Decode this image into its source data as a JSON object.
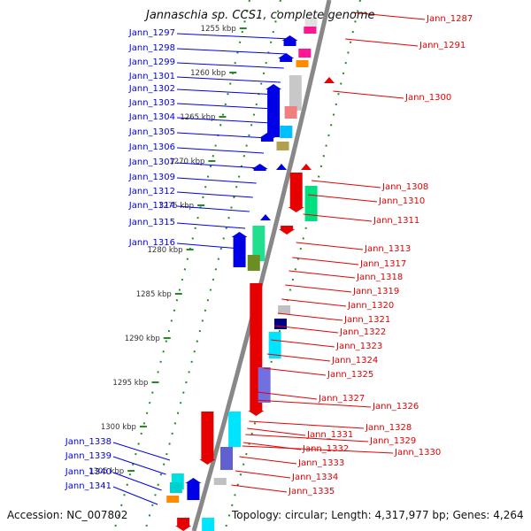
{
  "title": "Jannaschia sp. CCS1, complete genome",
  "footer": {
    "accession": "Accession: NC_007802",
    "topology": "Topology: circular; Length: 4,317,977 bp; Genes: 4,264"
  },
  "scale_labels": [
    "1255 kbp",
    "1260 kbp",
    "1265 kbp",
    "1270 kbp",
    "1275 kbp",
    "1280 kbp",
    "1285 kbp",
    "1290 kbp",
    "1295 kbp",
    "1300 kbp",
    "1305 kbp"
  ],
  "left_genes": [
    "Jann_1297",
    "Jann_1298",
    "Jann_1299",
    "Jann_1301",
    "Jann_1302",
    "Jann_1303",
    "Jann_1304",
    "Jann_1305",
    "Jann_1306",
    "Jann_1307",
    "Jann_1309",
    "Jann_1312",
    "Jann_1314",
    "Jann_1315",
    "Jann_1316",
    "Jann_1338",
    "Jann_1339",
    "Jann_1340",
    "Jann_1341"
  ],
  "right_genes": [
    "Jann_1287",
    "Jann_1291",
    "Jann_1300",
    "Jann_1308",
    "Jann_1310",
    "Jann_1311",
    "Jann_1313",
    "Jann_1317",
    "Jann_1318",
    "Jann_1319",
    "Jann_1320",
    "Jann_1321",
    "Jann_1322",
    "Jann_1323",
    "Jann_1324",
    "Jann_1325",
    "Jann_1327",
    "Jann_1326",
    "Jann_1328",
    "Jann_1329",
    "Jann_1331",
    "Jann_1330",
    "Jann_1332",
    "Jann_1333",
    "Jann_1334",
    "Jann_1335"
  ],
  "colors": {
    "forward": "#0000e6",
    "reverse": "#e60000",
    "backbone": "#888888",
    "tick": "#228b22"
  }
}
